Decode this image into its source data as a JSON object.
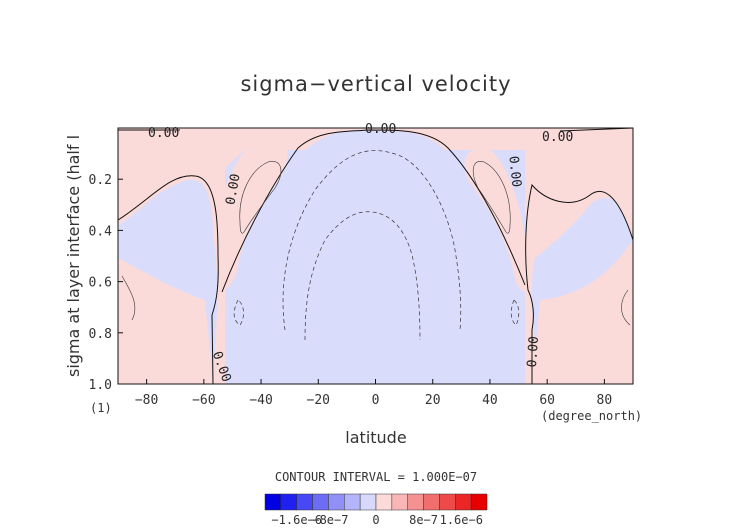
{
  "chart_data": {
    "type": "contour",
    "title": "sigma−vertical velocity",
    "xlabel": "latitude",
    "ylabel": "sigma at layer interface (half l",
    "x_units": "(degree_north)",
    "y_units": "(1)",
    "xlim": [
      -90,
      90
    ],
    "ylim": [
      1.0,
      0.0
    ],
    "x_ticks": [
      -80,
      -60,
      -40,
      -20,
      0,
      20,
      40,
      60,
      80
    ],
    "x_tick_labels": [
      "−80",
      "−60",
      "−40",
      "−20",
      "0",
      "20",
      "40",
      "60",
      "80"
    ],
    "y_ticks": [
      0.2,
      0.4,
      0.6,
      0.8,
      1.0
    ],
    "y_tick_labels": [
      "0.2",
      "0.4",
      "0.6",
      "0.8",
      "1.0"
    ],
    "contour_interval_label": "CONTOUR INTERVAL = 1.000E−07",
    "contour_labels": [
      "0.00",
      "0.00",
      "0.00",
      "0.00",
      "0.00",
      "0.00",
      "0.00"
    ],
    "regions": [
      {
        "name": "negative (sinking/blue)",
        "sign": -1,
        "approx_extent_lat": [
          -55,
          55
        ]
      },
      {
        "name": "positive (red)",
        "sign": 1,
        "approx_extent_lat_north": [
          45,
          90
        ],
        "approx_extent_lat_south": [
          -90,
          -45
        ]
      }
    ],
    "colorbar": {
      "min": -1.6e-06,
      "max": 1.6e-06,
      "labels": [
        "−1.6e−6",
        "−8e−7",
        "0",
        "8e−7",
        "1.6e−6"
      ],
      "colors": [
        "#0000e0",
        "#2020f0",
        "#4848f4",
        "#6c6cf4",
        "#9090f6",
        "#b4b4fa",
        "#d8d8fc",
        "#fcdada",
        "#f8b6b6",
        "#f49292",
        "#f06e6e",
        "#ee4a4a",
        "#ec2626",
        "#e80000"
      ]
    }
  },
  "colors": {
    "negative_fill": "#dadcfc",
    "positive_fill": "#fbdada"
  }
}
